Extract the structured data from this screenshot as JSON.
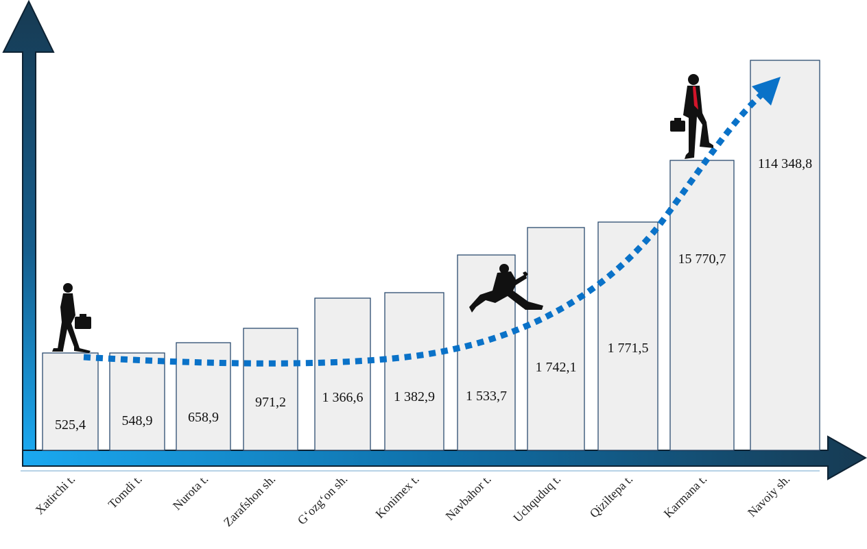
{
  "colors": {
    "axis_dark": "#173a52",
    "axis_light": "#1aa8f0",
    "bar_fill": "#efefef",
    "bar_stroke": "#2a4a6e",
    "trend_line": "#0a72c8"
  },
  "icons": [
    "walking-businessman-icon",
    "leaping-businessman-icon",
    "climbing-businessman-icon"
  ],
  "chart_data": {
    "type": "bar",
    "title": "",
    "xlabel": "",
    "ylabel": "",
    "grid": false,
    "legend": "none",
    "scale": "non-linear (bar heights increase with rank, not proportional)",
    "categories": [
      "Xatirchi t.",
      "Tomdi t.",
      "Nurota t.",
      "Zarafshon sh.",
      "G‘ozg‘on sh.",
      "Konimex t.",
      "Navbahor t.",
      "Uchquduq t.",
      "Qiziltepa t.",
      "Karmana t.",
      "Navoiy sh."
    ],
    "values": [
      525.4,
      548.9,
      658.9,
      971.2,
      1366.6,
      1382.9,
      1533.7,
      1742.1,
      1771.5,
      15770.7,
      114348.8
    ],
    "value_labels": [
      "525,4",
      "548,9",
      "658,9",
      "971,2",
      "1 366,6",
      "1 382,9",
      "1 533,7",
      "1 742,1",
      "1 771,5",
      "15 770,7",
      "114 348,8"
    ],
    "trend": "dotted upward arrow"
  }
}
